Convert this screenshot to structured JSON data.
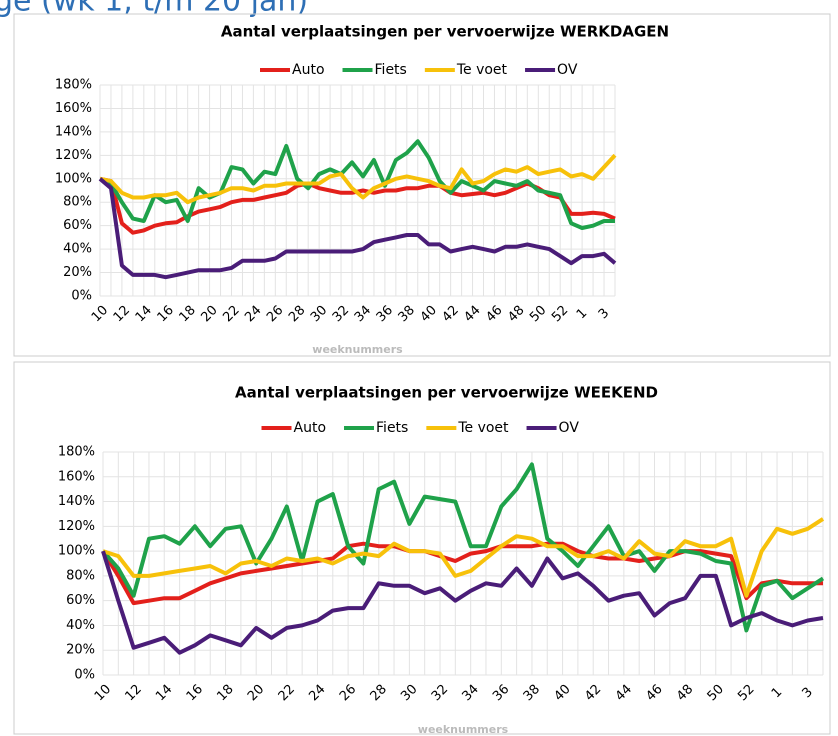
{
  "page_title": "ge (wk 1, t/m 20 jan)",
  "chart_data": [
    {
      "type": "line",
      "title": "Aantal verplaatsingen  per vervoerwijze  WERKDAGEN",
      "x_label": "weeknummers",
      "categories": [
        "10",
        null,
        "12",
        null,
        "14",
        null,
        "16",
        null,
        "18",
        null,
        "20",
        null,
        "22",
        null,
        "24",
        null,
        "26",
        null,
        "28",
        null,
        "30",
        null,
        "32",
        null,
        "34",
        null,
        "36",
        null,
        "38",
        null,
        "40",
        null,
        "42",
        null,
        "44",
        null,
        "46",
        null,
        "48",
        null,
        "50",
        null,
        "52",
        null,
        "1",
        null,
        "3",
        null
      ],
      "ylim": [
        0,
        180
      ],
      "yticks": [
        {
          "value": 0,
          "label": "0%"
        },
        {
          "value": 20,
          "label": "20%"
        },
        {
          "value": 40,
          "label": "40%"
        },
        {
          "value": 60,
          "label": "60%"
        },
        {
          "value": 80,
          "label": "80%"
        },
        {
          "value": 100,
          "label": "100%"
        },
        {
          "value": 120,
          "label": "120%"
        },
        {
          "value": 140,
          "label": "140%"
        },
        {
          "value": 160,
          "label": "160%"
        },
        {
          "value": 180,
          "label": "180%"
        }
      ],
      "grid": true,
      "legend": "top",
      "series": [
        {
          "name": "Auto",
          "color": "#e3201b",
          "values": [
            100,
            98,
            62,
            54,
            56,
            60,
            62,
            63,
            68,
            72,
            74,
            76,
            80,
            82,
            82,
            84,
            86,
            88,
            94,
            96,
            92,
            90,
            88,
            88,
            90,
            88,
            90,
            90,
            92,
            92,
            94,
            94,
            88,
            86,
            87,
            88,
            86,
            88,
            92,
            96,
            92,
            86,
            84,
            70,
            70,
            71,
            70,
            66
          ]
        },
        {
          "name": "Fiets",
          "color": "#1fa24a",
          "values": [
            100,
            96,
            80,
            66,
            64,
            86,
            80,
            82,
            64,
            92,
            84,
            88,
            110,
            108,
            96,
            106,
            104,
            128,
            100,
            92,
            104,
            108,
            104,
            114,
            102,
            116,
            94,
            116,
            122,
            132,
            118,
            98,
            88,
            98,
            94,
            90,
            98,
            96,
            94,
            98,
            90,
            88,
            86,
            62,
            58,
            60,
            64,
            64
          ]
        },
        {
          "name": "Te voet",
          "color": "#f7c10a",
          "values": [
            100,
            98,
            88,
            84,
            84,
            86,
            86,
            88,
            80,
            84,
            86,
            88,
            92,
            92,
            90,
            94,
            94,
            96,
            96,
            96,
            96,
            102,
            104,
            92,
            84,
            92,
            96,
            100,
            102,
            100,
            98,
            94,
            92,
            108,
            96,
            98,
            104,
            108,
            106,
            110,
            104,
            106,
            108,
            102,
            104,
            100,
            110,
            120
          ]
        },
        {
          "name": "OV",
          "color": "#4a1d78",
          "values": [
            100,
            92,
            26,
            18,
            18,
            18,
            16,
            18,
            20,
            22,
            22,
            22,
            24,
            30,
            30,
            30,
            32,
            38,
            38,
            38,
            38,
            38,
            38,
            38,
            40,
            46,
            48,
            50,
            52,
            52,
            44,
            44,
            38,
            40,
            42,
            40,
            38,
            42,
            42,
            44,
            42,
            40,
            34,
            28,
            34,
            34,
            36,
            28
          ]
        }
      ]
    },
    {
      "type": "line",
      "title": "Aantal verplaatsingen  per vervoerwijze  WEEKEND",
      "x_label": "weeknummers",
      "categories": [
        "10",
        null,
        "12",
        null,
        "14",
        null,
        "16",
        null,
        "18",
        null,
        "20",
        null,
        "22",
        null,
        "24",
        null,
        "26",
        null,
        "28",
        null,
        "30",
        null,
        "32",
        null,
        "34",
        null,
        "36",
        null,
        "38",
        null,
        "40",
        null,
        "42",
        null,
        "44",
        null,
        "46",
        null,
        "48",
        null,
        "50",
        null,
        "52",
        null,
        "1",
        null,
        "3",
        null
      ],
      "ylim": [
        0,
        180
      ],
      "yticks": [
        {
          "value": 0,
          "label": "0%"
        },
        {
          "value": 20,
          "label": "20%"
        },
        {
          "value": 40,
          "label": "40%"
        },
        {
          "value": 60,
          "label": "60%"
        },
        {
          "value": 80,
          "label": "80%"
        },
        {
          "value": 100,
          "label": "100%"
        },
        {
          "value": 120,
          "label": "120%"
        },
        {
          "value": 140,
          "label": "140%"
        },
        {
          "value": 160,
          "label": "160%"
        },
        {
          "value": 180,
          "label": "180%"
        }
      ],
      "grid": true,
      "legend": "top",
      "series": [
        {
          "name": "Auto",
          "color": "#e3201b",
          "values": [
            100,
            80,
            58,
            60,
            62,
            62,
            68,
            74,
            78,
            82,
            84,
            86,
            88,
            90,
            92,
            94,
            104,
            106,
            104,
            104,
            100,
            100,
            96,
            92,
            98,
            100,
            104,
            104,
            104,
            106,
            106,
            100,
            96,
            94,
            94,
            92,
            94,
            96,
            100,
            100,
            98,
            96,
            62,
            74,
            76,
            74,
            74,
            74
          ]
        },
        {
          "name": "Fiets",
          "color": "#1fa24a",
          "values": [
            100,
            86,
            64,
            110,
            112,
            106,
            120,
            104,
            118,
            120,
            90,
            110,
            136,
            92,
            140,
            146,
            104,
            90,
            150,
            156,
            122,
            144,
            142,
            140,
            104,
            104,
            136,
            150,
            170,
            110,
            100,
            88,
            104,
            120,
            96,
            100,
            84,
            100,
            100,
            98,
            92,
            90,
            36,
            72,
            76,
            62,
            70,
            78
          ]
        },
        {
          "name": "Te voet",
          "color": "#f7c10a",
          "values": [
            100,
            96,
            80,
            80,
            82,
            84,
            86,
            88,
            82,
            90,
            92,
            88,
            94,
            92,
            94,
            90,
            96,
            98,
            96,
            106,
            100,
            100,
            98,
            80,
            84,
            94,
            104,
            112,
            110,
            104,
            104,
            96,
            96,
            100,
            94,
            108,
            98,
            96,
            108,
            104,
            104,
            110,
            64,
            100,
            118,
            114,
            118,
            126
          ]
        },
        {
          "name": "OV",
          "color": "#4a1d78",
          "values": [
            100,
            60,
            22,
            26,
            30,
            18,
            24,
            32,
            28,
            24,
            38,
            30,
            38,
            40,
            44,
            52,
            54,
            54,
            74,
            72,
            72,
            66,
            70,
            60,
            68,
            74,
            72,
            86,
            72,
            94,
            78,
            82,
            72,
            60,
            64,
            66,
            48,
            58,
            62,
            80,
            80,
            40,
            46,
            50,
            44,
            40,
            44,
            46
          ]
        }
      ]
    }
  ]
}
